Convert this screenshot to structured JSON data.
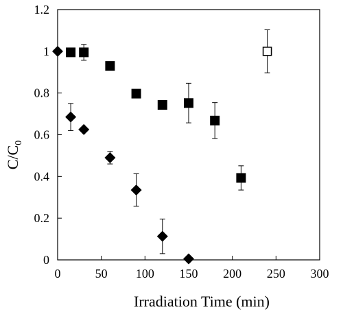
{
  "chart_data": {
    "type": "scatter",
    "title": "",
    "xlabel": "Irradiation Time (min)",
    "ylabel": {
      "base": "C/C",
      "subscript": "0"
    },
    "xlim": [
      0,
      300
    ],
    "ylim": [
      0,
      1.2
    ],
    "xticks": [
      0,
      50,
      100,
      150,
      200,
      250,
      300
    ],
    "yticks": [
      0,
      0.2,
      0.4,
      0.6,
      0.8,
      1,
      1.2
    ],
    "xtick_labels": [
      "0",
      "50",
      "100",
      "150",
      "200",
      "250",
      "300"
    ],
    "ytick_labels": [
      "0",
      "0.2",
      "0.4",
      "0.6",
      "0.8",
      "1",
      "1.2"
    ],
    "grid": false,
    "legend": "none",
    "series": [
      {
        "marker": "filled-diamond",
        "color": "#000000",
        "points": [
          {
            "x": 0,
            "y": 1.0,
            "err": null
          },
          {
            "x": 15,
            "y": 0.685,
            "err": 0.065
          },
          {
            "x": 30,
            "y": 0.625,
            "err": null
          },
          {
            "x": 60,
            "y": 0.49,
            "err": 0.03
          },
          {
            "x": 90,
            "y": 0.335,
            "err": 0.078
          },
          {
            "x": 120,
            "y": 0.113,
            "err": 0.083
          },
          {
            "x": 150,
            "y": 0.005,
            "err": null
          }
        ]
      },
      {
        "marker": "filled-square",
        "color": "#000000",
        "points": [
          {
            "x": 15,
            "y": 0.995,
            "err": null
          },
          {
            "x": 30,
            "y": 0.995,
            "err": 0.038
          },
          {
            "x": 60,
            "y": 0.93,
            "err": null
          },
          {
            "x": 90,
            "y": 0.797,
            "err": null
          },
          {
            "x": 120,
            "y": 0.743,
            "err": null
          },
          {
            "x": 150,
            "y": 0.752,
            "err": 0.095
          },
          {
            "x": 180,
            "y": 0.668,
            "err": 0.086
          },
          {
            "x": 210,
            "y": 0.393,
            "err": 0.058
          }
        ]
      },
      {
        "marker": "open-square",
        "color": "#000000",
        "points": [
          {
            "x": 240,
            "y": 1.0,
            "err": 0.103
          }
        ]
      }
    ]
  }
}
